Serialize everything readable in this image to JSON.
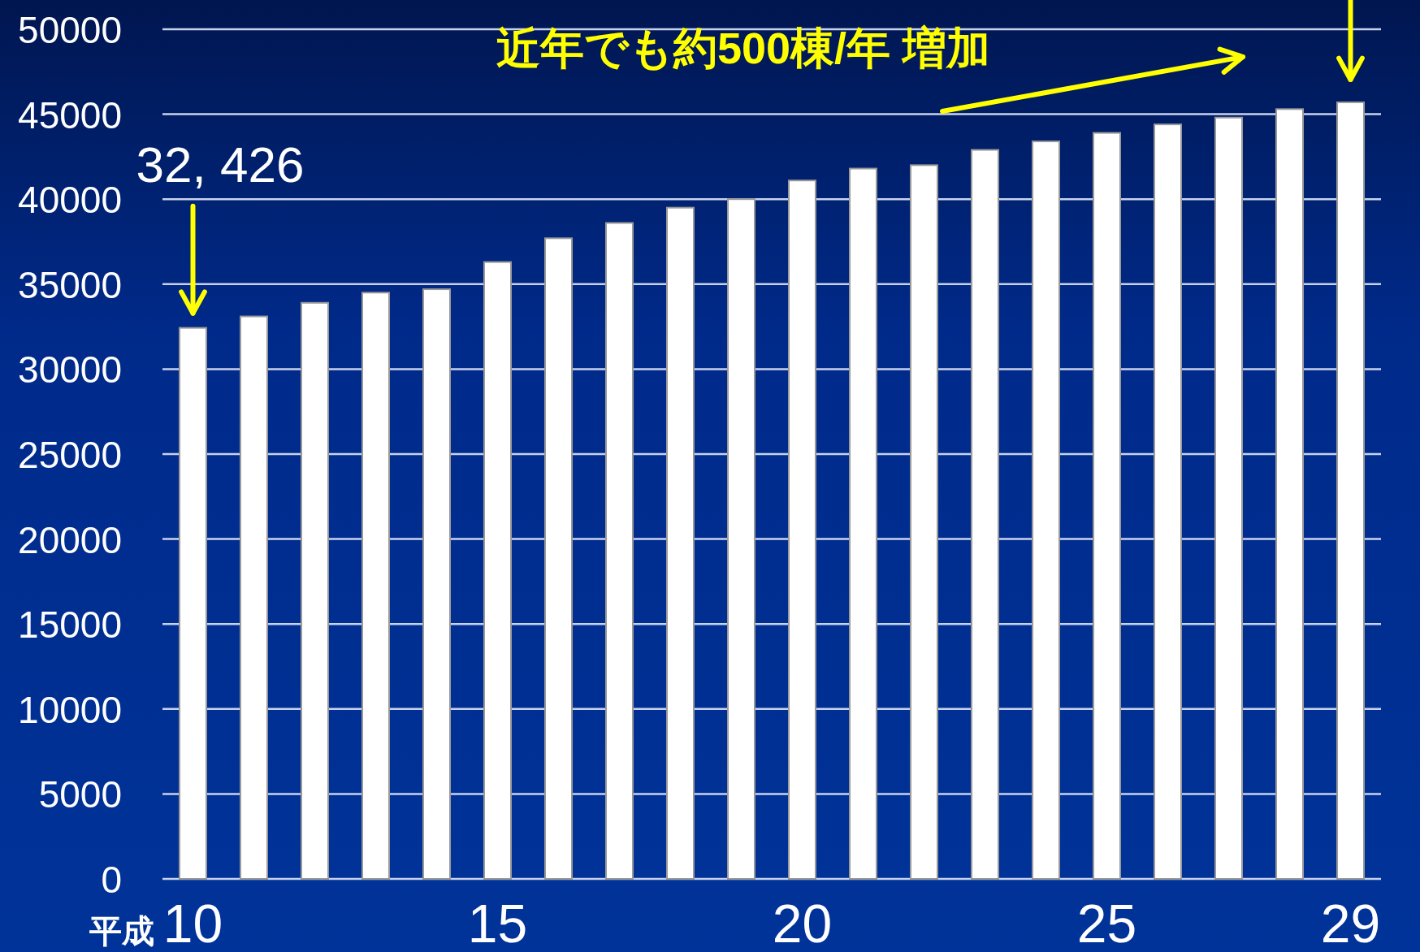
{
  "chart_data": {
    "type": "bar",
    "categories": [
      "10",
      null,
      null,
      null,
      null,
      "15",
      null,
      null,
      null,
      null,
      "20",
      null,
      null,
      null,
      null,
      "25",
      null,
      null,
      null,
      "29"
    ],
    "xlabel": "平成",
    "values": [
      32426,
      33100,
      33900,
      34500,
      34700,
      36300,
      37700,
      38600,
      39500,
      40000,
      41100,
      41800,
      42000,
      42900,
      43400,
      43900,
      44400,
      44800,
      45300,
      45700
    ],
    "color": "#ffffff",
    "ylim": [
      0,
      50000
    ],
    "yticks": [
      0,
      5000,
      10000,
      15000,
      20000,
      25000,
      30000,
      35000,
      40000,
      45000,
      50000
    ],
    "grid": "y",
    "annotations": [
      {
        "text": "32, 426",
        "x": "10",
        "y": 32426
      },
      "近年でも約500棟/年 増加"
    ]
  }
}
